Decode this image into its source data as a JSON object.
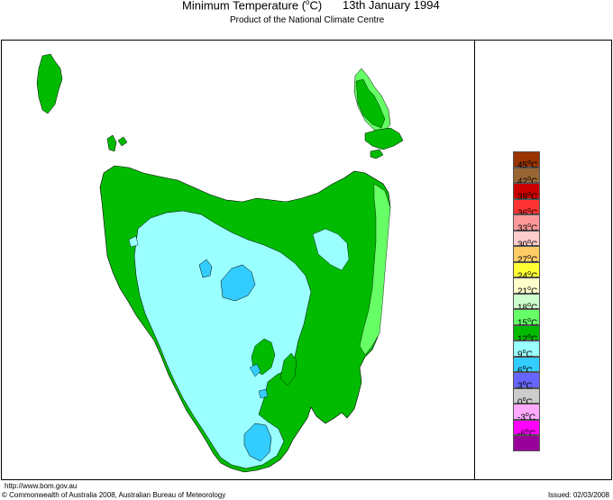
{
  "header": {
    "title_prefix": "Minimum Temperature (",
    "title_degree": "o",
    "title_suffix": "C)",
    "date": "13th January 1994",
    "subtitle": "Product of the National Climate Centre"
  },
  "legend": {
    "unit": "C",
    "items": [
      {
        "label": "45",
        "color": "#993300"
      },
      {
        "label": "42",
        "color": "#996633"
      },
      {
        "label": "39",
        "color": "#cc0000"
      },
      {
        "label": "36",
        "color": "#ff3333"
      },
      {
        "label": "33",
        "color": "#ff9999"
      },
      {
        "label": "30",
        "color": "#ffcccc"
      },
      {
        "label": "27",
        "color": "#ffcc66"
      },
      {
        "label": "24",
        "color": "#ffff33"
      },
      {
        "label": "21",
        "color": "#ffffcc"
      },
      {
        "label": "18",
        "color": "#ccffcc"
      },
      {
        "label": "15",
        "color": "#66ff66"
      },
      {
        "label": "12",
        "color": "#00bb00"
      },
      {
        "label": "9",
        "color": "#99ffff"
      },
      {
        "label": "6",
        "color": "#33ccff"
      },
      {
        "label": "3",
        "color": "#6666ff"
      },
      {
        "label": "0",
        "color": "#cccccc"
      },
      {
        "label": "-3",
        "color": "#ffaaff"
      },
      {
        "label": "-6",
        "color": "#ff00ff"
      },
      {
        "label": "",
        "color": "#990099"
      }
    ]
  },
  "map": {
    "region": "Tasmania",
    "zone_colors": {
      "land_main": "#00bb00",
      "coastal_warm": "#66ff66",
      "interior_cool": "#99ffff",
      "highland_cold": "#33ccff"
    }
  },
  "footer": {
    "url": "http://www.bom.gov.au",
    "copyright": "© Commonwealth of Australia 2008, Australian Bureau of Meteorology",
    "issued": "Issued: 02/03/2008"
  }
}
